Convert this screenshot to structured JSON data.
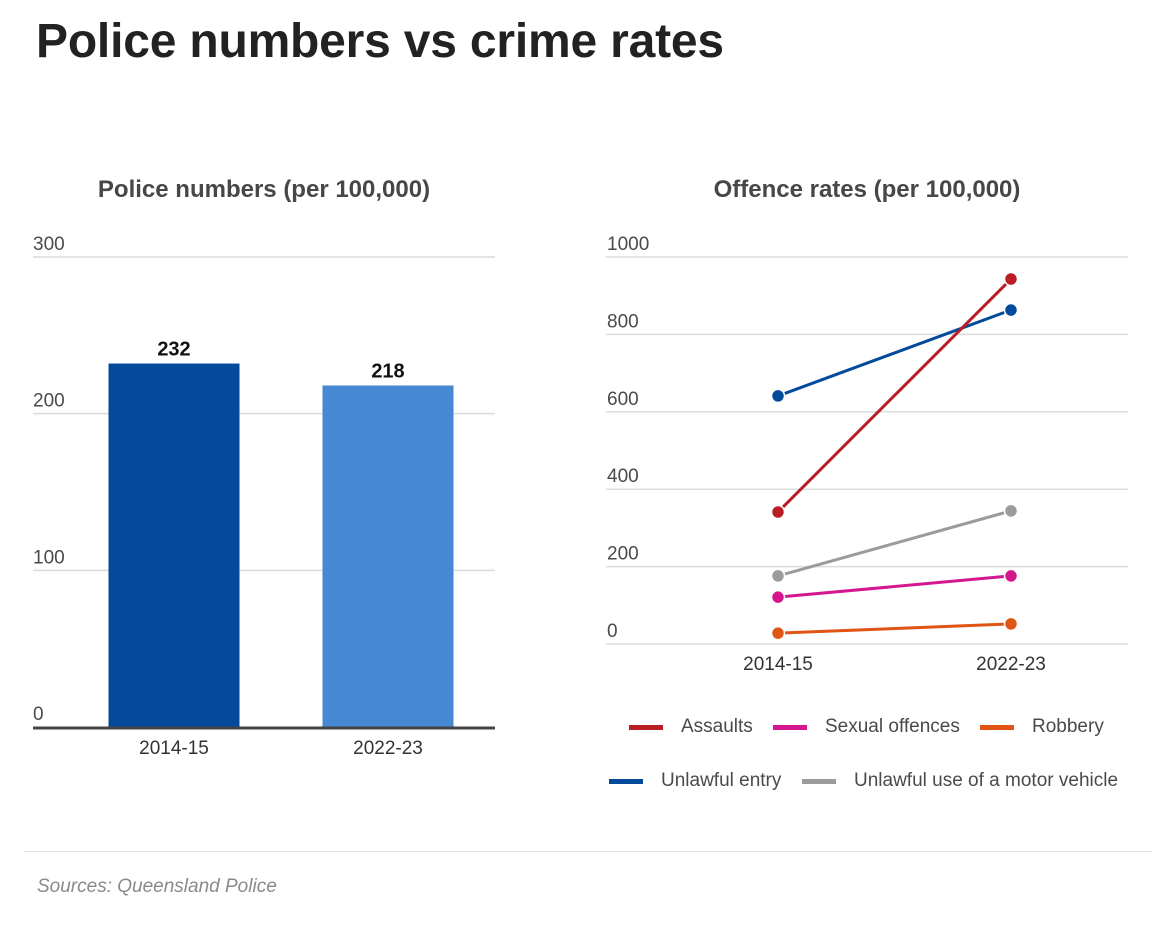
{
  "title": "Police numbers vs crime rates",
  "source": "Sources: Queensland Police",
  "chart_data": [
    {
      "type": "bar",
      "title": "Police numbers (per 100,000)",
      "categories": [
        "2014-15",
        "2022-23"
      ],
      "values": [
        232,
        218
      ],
      "data_labels": [
        "232",
        "218"
      ],
      "colors": [
        "#034a9a",
        "#4688d2"
      ],
      "xlabel": "",
      "ylabel": "",
      "ylim": [
        0,
        300
      ],
      "yticks": [
        0,
        100,
        200,
        300
      ],
      "ytick_labels": [
        "0",
        "100",
        "200",
        "300"
      ],
      "grid": true
    },
    {
      "type": "line",
      "title": "Offence rates (per 100,000)",
      "x": [
        "2014-15",
        "2022-23"
      ],
      "series": [
        {
          "name": "Assaults",
          "values": [
            341,
            943
          ],
          "color": "#b81e24"
        },
        {
          "name": "Sexual offences",
          "values": [
            121,
            176
          ],
          "color": "#d4178e"
        },
        {
          "name": "Robbery",
          "values": [
            28,
            52
          ],
          "color": "#e05513"
        },
        {
          "name": "Unlawful entry",
          "values": [
            641,
            863
          ],
          "color": "#034a9a"
        },
        {
          "name": "Unlawful use of a motor vehicle",
          "values": [
            176,
            344
          ],
          "color": "#9b9b9b"
        }
      ],
      "xlabel": "",
      "ylabel": "",
      "ylim": [
        0,
        1000
      ],
      "yticks": [
        0,
        200,
        400,
        600,
        800,
        1000
      ],
      "ytick_labels": [
        "0",
        "200",
        "400",
        "600",
        "800",
        "1000"
      ],
      "grid": true,
      "legend_position": "bottom"
    }
  ]
}
